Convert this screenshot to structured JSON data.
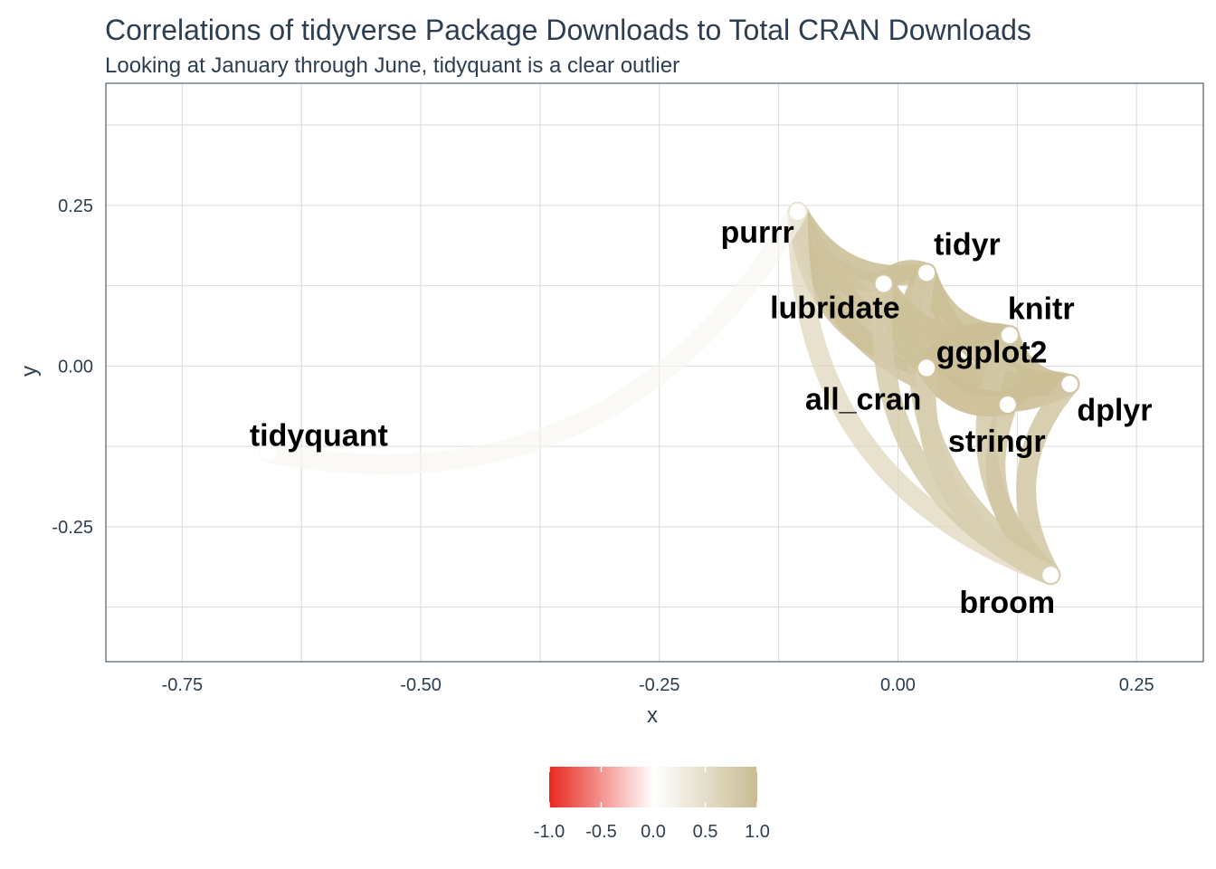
{
  "chart_data": {
    "type": "scatter",
    "subtype": "correlation-network",
    "title": "Correlations of tidyverse Package Downloads to Total CRAN Downloads",
    "subtitle": "Looking at January through June, tidyquant is a clear outlier",
    "xlabel": "x",
    "ylabel": "y",
    "xlim": [
      -0.83,
      0.32
    ],
    "ylim": [
      -0.46,
      0.44
    ],
    "xticks": [
      -0.75,
      -0.5,
      -0.25,
      0.0,
      0.25
    ],
    "xtick_labels": [
      "-0.75",
      "-0.50",
      "-0.25",
      "0.00",
      "0.25"
    ],
    "yticks": [
      -0.25,
      0.0,
      0.25
    ],
    "ytick_labels": [
      "-0.25",
      "0.00",
      "0.25"
    ],
    "grid": true,
    "nodes": [
      {
        "name": "purrr",
        "x": -0.105,
        "y": 0.24
      },
      {
        "name": "tidyr",
        "x": 0.03,
        "y": 0.145
      },
      {
        "name": "lubridate",
        "x": -0.015,
        "y": 0.128
      },
      {
        "name": "knitr",
        "x": 0.117,
        "y": 0.048
      },
      {
        "name": "ggplot2",
        "x": 0.03,
        "y": -0.003
      },
      {
        "name": "all_cran",
        "x": 0.03,
        "y": -0.003
      },
      {
        "name": "dplyr",
        "x": 0.18,
        "y": -0.028
      },
      {
        "name": "stringr",
        "x": 0.115,
        "y": -0.06
      },
      {
        "name": "broom",
        "x": 0.16,
        "y": -0.325
      },
      {
        "name": "tidyquant",
        "x": -0.66,
        "y": -0.135
      }
    ],
    "edges": [
      {
        "from": "purrr",
        "to": "tidyr",
        "r": 0.95
      },
      {
        "from": "purrr",
        "to": "lubridate",
        "r": 0.92
      },
      {
        "from": "purrr",
        "to": "knitr",
        "r": 0.9
      },
      {
        "from": "purrr",
        "to": "dplyr",
        "r": 0.93
      },
      {
        "from": "purrr",
        "to": "stringr",
        "r": 0.9
      },
      {
        "from": "purrr",
        "to": "ggplot2",
        "r": 0.92
      },
      {
        "from": "purrr",
        "to": "broom",
        "r": 0.6
      },
      {
        "from": "tidyr",
        "to": "lubridate",
        "r": 0.95
      },
      {
        "from": "tidyr",
        "to": "knitr",
        "r": 0.95
      },
      {
        "from": "tidyr",
        "to": "dplyr",
        "r": 0.96
      },
      {
        "from": "tidyr",
        "to": "stringr",
        "r": 0.95
      },
      {
        "from": "tidyr",
        "to": "ggplot2",
        "r": 0.96
      },
      {
        "from": "tidyr",
        "to": "broom",
        "r": 0.8
      },
      {
        "from": "lubridate",
        "to": "knitr",
        "r": 0.93
      },
      {
        "from": "lubridate",
        "to": "dplyr",
        "r": 0.94
      },
      {
        "from": "lubridate",
        "to": "stringr",
        "r": 0.94
      },
      {
        "from": "lubridate",
        "to": "broom",
        "r": 0.78
      },
      {
        "from": "knitr",
        "to": "dplyr",
        "r": 0.96
      },
      {
        "from": "knitr",
        "to": "stringr",
        "r": 0.95
      },
      {
        "from": "knitr",
        "to": "ggplot2",
        "r": 0.96
      },
      {
        "from": "knitr",
        "to": "broom",
        "r": 0.82
      },
      {
        "from": "ggplot2",
        "to": "dplyr",
        "r": 0.97
      },
      {
        "from": "ggplot2",
        "to": "stringr",
        "r": 0.96
      },
      {
        "from": "ggplot2",
        "to": "broom",
        "r": 0.82
      },
      {
        "from": "dplyr",
        "to": "stringr",
        "r": 0.96
      },
      {
        "from": "dplyr",
        "to": "broom",
        "r": 0.85
      },
      {
        "from": "stringr",
        "to": "broom",
        "r": 0.85
      },
      {
        "from": "all_cran",
        "to": "broom",
        "r": 0.7
      },
      {
        "from": "all_cran",
        "to": "stringr",
        "r": 0.9
      },
      {
        "from": "tidyquant",
        "to": "purrr",
        "r": 0.15
      }
    ],
    "colorbar": {
      "range": [
        -1.0,
        1.0
      ],
      "colors": {
        "low": "#e8281e",
        "mid": "#ffffff",
        "high": "#c9bc92"
      },
      "ticks": [
        -1.0,
        -0.5,
        0.0,
        0.5,
        1.0
      ],
      "tick_labels": [
        "-1.0",
        "-0.5",
        "0.0",
        "0.5",
        "1.0"
      ],
      "placement": "bottom"
    }
  }
}
